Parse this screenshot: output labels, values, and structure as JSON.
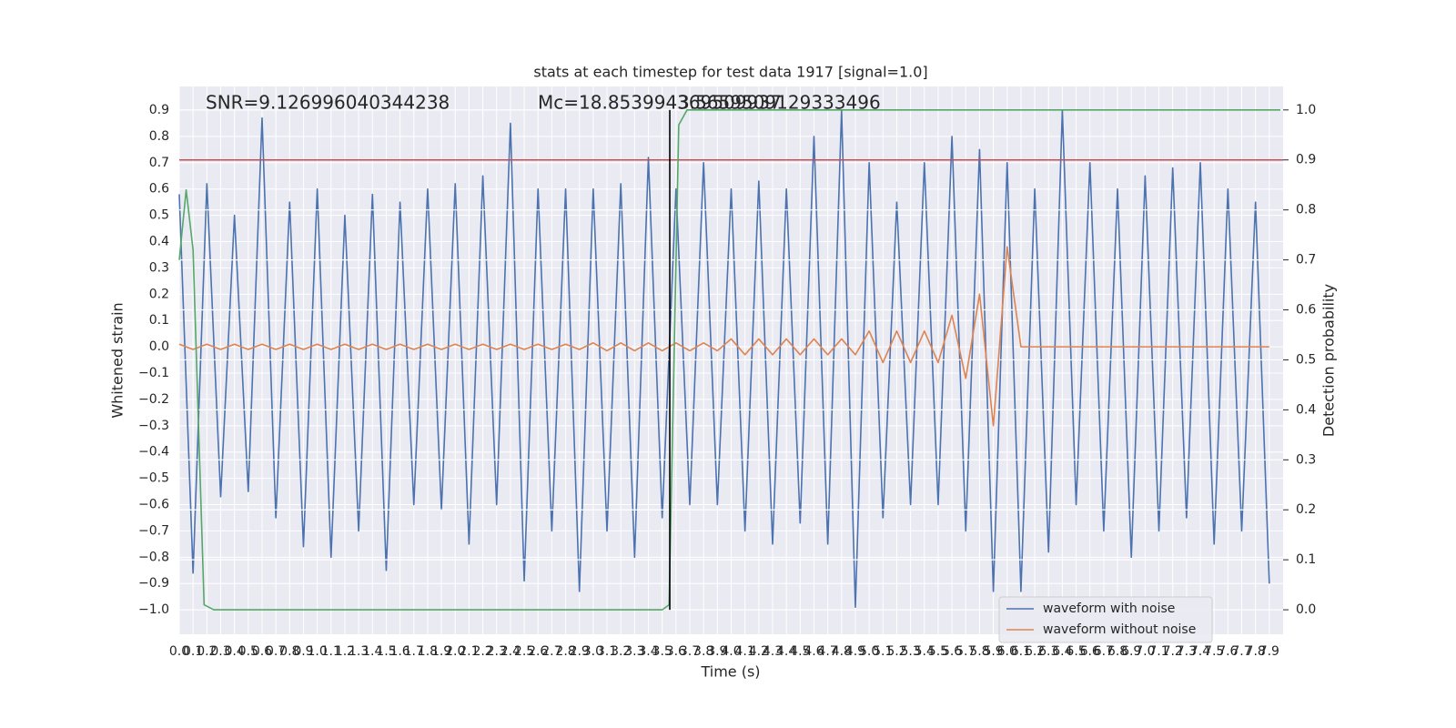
{
  "chart_data": {
    "type": "line",
    "title": "stats at each timestep for test data 1917 [signal=1.0]",
    "x_label": "Time (s)",
    "y_label": "Whitened strain",
    "y2_label": "Detection probability",
    "annotations": [
      "SNR=9.126996040344238",
      "Mc=18.853994369509937",
      "3.5659509129333496"
    ],
    "grid": true,
    "legend": "lower right",
    "xlim": [
      0,
      8
    ],
    "ylim": [
      -1.093,
      0.99
    ],
    "y2lim": [
      -0.049,
      1.047
    ],
    "xticks": [
      {
        "value": 0,
        "label": "0.0"
      },
      0.1,
      0.2,
      0.3,
      0.4,
      0.5,
      0.6,
      0.7,
      0.8,
      0.9,
      {
        "value": 1,
        "label": "1.0"
      },
      1.1,
      1.2,
      1.3,
      1.4,
      1.5,
      1.6,
      1.7,
      1.8,
      1.9,
      {
        "value": 2,
        "label": "2.0"
      },
      2.1,
      2.2,
      2.3,
      2.4,
      2.5,
      2.6,
      2.7,
      2.8,
      2.9,
      {
        "value": 3,
        "label": "3.0"
      },
      3.1,
      3.2,
      3.3,
      3.4,
      3.5,
      3.6,
      3.7,
      3.8,
      3.9,
      {
        "value": 4,
        "label": "4.0"
      },
      4.1,
      4.2,
      4.3,
      4.4,
      4.5,
      4.6,
      4.7,
      4.8,
      4.9,
      {
        "value": 5,
        "label": "5.0"
      },
      5.1,
      5.2,
      5.3,
      5.4,
      5.5,
      5.6,
      5.7,
      5.8,
      5.9,
      {
        "value": 6,
        "label": "6.0"
      },
      6.1,
      6.2,
      6.3,
      6.4,
      6.5,
      6.6,
      6.7,
      6.8,
      6.9,
      {
        "value": 7,
        "label": "7.0"
      },
      7.1,
      7.2,
      7.3,
      7.4,
      7.5,
      7.6,
      7.7,
      7.8,
      7.9
    ],
    "yticks": [
      {
        "value": -1,
        "label": "−1.0"
      },
      {
        "value": -0.9,
        "label": "−0.9"
      },
      {
        "value": -0.8,
        "label": "−0.8"
      },
      {
        "value": -0.7,
        "label": "−0.7"
      },
      {
        "value": -0.6,
        "label": "−0.6"
      },
      {
        "value": -0.5,
        "label": "−0.5"
      },
      {
        "value": -0.4,
        "label": "−0.4"
      },
      {
        "value": -0.3,
        "label": "−0.3"
      },
      {
        "value": -0.2,
        "label": "−0.2"
      },
      {
        "value": -0.1,
        "label": "−0.1"
      },
      {
        "value": 0,
        "label": "0.0"
      },
      0.1,
      0.2,
      0.3,
      0.4,
      0.5,
      0.6,
      0.7,
      0.8,
      0.9
    ],
    "y2ticks": [
      {
        "value": 0,
        "label": "0.0"
      },
      0.1,
      0.2,
      0.3,
      0.4,
      0.5,
      0.6,
      0.7,
      0.8,
      0.9,
      {
        "value": 1,
        "label": "1.0"
      }
    ],
    "x": [
      0,
      0.1,
      0.2,
      0.3,
      0.4,
      0.5,
      0.6,
      0.7,
      0.8,
      0.9,
      1,
      1.1,
      1.2,
      1.3,
      1.4,
      1.5,
      1.6,
      1.7,
      1.8,
      1.9,
      2,
      2.1,
      2.2,
      2.3,
      2.4,
      2.5,
      2.6,
      2.7,
      2.8,
      2.9,
      3,
      3.1,
      3.2,
      3.3,
      3.4,
      3.5,
      3.6,
      3.7,
      3.8,
      3.9,
      4,
      4.1,
      4.2,
      4.3,
      4.4,
      4.5,
      4.6,
      4.7,
      4.8,
      4.9,
      5,
      5.1,
      5.2,
      5.3,
      5.4,
      5.5,
      5.6,
      5.7,
      5.8,
      5.9,
      6,
      6.1,
      6.2,
      6.3,
      6.4,
      6.5,
      6.6,
      6.7,
      6.8,
      6.9,
      7,
      7.1,
      7.2,
      7.3,
      7.4,
      7.5,
      7.6,
      7.7,
      7.8,
      7.9
    ],
    "series": [
      {
        "name": "waveform with noise",
        "color": "#4c72b0",
        "values": [
          0.58,
          -0.86,
          0.62,
          -0.57,
          0.5,
          -0.55,
          0.87,
          -0.65,
          0.55,
          -0.76,
          0.6,
          -0.8,
          0.5,
          -0.7,
          0.58,
          -0.85,
          0.55,
          -0.6,
          0.6,
          -0.62,
          0.62,
          -0.75,
          0.65,
          -0.6,
          0.85,
          -0.89,
          0.6,
          -0.7,
          0.6,
          -0.93,
          0.6,
          -0.7,
          0.62,
          -0.8,
          0.72,
          -0.65,
          0.6,
          -0.6,
          0.7,
          -0.6,
          0.6,
          -0.7,
          0.63,
          -0.75,
          0.6,
          -0.67,
          0.8,
          -0.75,
          0.9,
          -0.99,
          0.7,
          -0.65,
          0.55,
          -0.6,
          0.7,
          -0.6,
          0.8,
          -0.7,
          0.75,
          -0.93,
          0.7,
          -0.93,
          0.6,
          -0.78,
          0.9,
          -0.6,
          0.7,
          -0.7,
          0.6,
          -0.8,
          0.65,
          -0.7,
          0.68,
          -0.65,
          0.7,
          -0.75,
          0.6,
          -0.7,
          0.55,
          -0.9
        ]
      },
      {
        "name": "waveform without noise",
        "color": "#dd8452",
        "values": [
          0.01,
          -0.01,
          0.01,
          -0.01,
          0.01,
          -0.01,
          0.01,
          -0.01,
          0.01,
          -0.01,
          0.01,
          -0.01,
          0.01,
          -0.01,
          0.01,
          -0.01,
          0.01,
          -0.01,
          0.01,
          -0.01,
          0.01,
          -0.01,
          0.01,
          -0.01,
          0.01,
          -0.01,
          0.01,
          -0.01,
          0.01,
          -0.01,
          0.015,
          -0.015,
          0.015,
          -0.015,
          0.015,
          -0.015,
          0.015,
          -0.015,
          0.015,
          -0.015,
          0.03,
          -0.03,
          0.03,
          -0.03,
          0.03,
          -0.03,
          0.03,
          -0.03,
          0.03,
          -0.03,
          0.06,
          -0.06,
          0.06,
          -0.06,
          0.06,
          -0.06,
          0.12,
          -0.12,
          0.2,
          -0.3,
          0.38,
          0,
          0,
          0,
          0,
          0,
          0,
          0,
          0,
          0,
          0,
          0,
          0,
          0,
          0,
          0,
          0,
          0,
          0,
          0
        ]
      },
      {
        "color": "#55a868",
        "axis": "y2",
        "x": [
          0,
          0.05,
          0.1,
          0.18,
          0.25,
          3.5,
          3.55,
          3.62,
          3.68,
          7.98
        ],
        "values": [
          0.7,
          0.84,
          0.72,
          0.01,
          0,
          0,
          0.01,
          0.97,
          1,
          1
        ]
      }
    ],
    "threshold": {
      "axis": "y2",
      "value": 0.9,
      "color": "#c44e52"
    },
    "marker_time": 3.555
  }
}
